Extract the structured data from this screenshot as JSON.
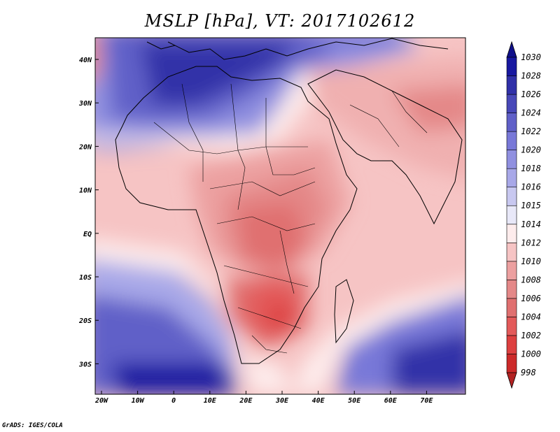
{
  "title": "MSLP [hPa], VT: 2017102612",
  "credit": "GrADS: IGES/COLA",
  "map": {
    "lon_labels": [
      "20W",
      "10W",
      "0",
      "10E",
      "20E",
      "30E",
      "40E",
      "50E",
      "60E",
      "70E"
    ],
    "lat_labels": [
      "40N",
      "30N",
      "20N",
      "10N",
      "EQ",
      "10S",
      "20S",
      "30S"
    ]
  },
  "colorbar": {
    "levels": [
      "998",
      "1000",
      "1002",
      "1004",
      "1006",
      "1008",
      "1010",
      "1012",
      "1014",
      "1015",
      "1016",
      "1018",
      "1020",
      "1022",
      "1024",
      "1026",
      "1028",
      "1030"
    ],
    "colors": [
      "#b22222",
      "#cc2a2a",
      "#dd4040",
      "#e35a5a",
      "#e07070",
      "#e48888",
      "#eca0a0",
      "#f6c4c4",
      "#fdecec",
      "#e8e8f8",
      "#c8c8f0",
      "#a8a8e8",
      "#9090e0",
      "#7878d8",
      "#6060c8",
      "#4848b8",
      "#3030a8",
      "#1818a0",
      "#10108a"
    ]
  }
}
